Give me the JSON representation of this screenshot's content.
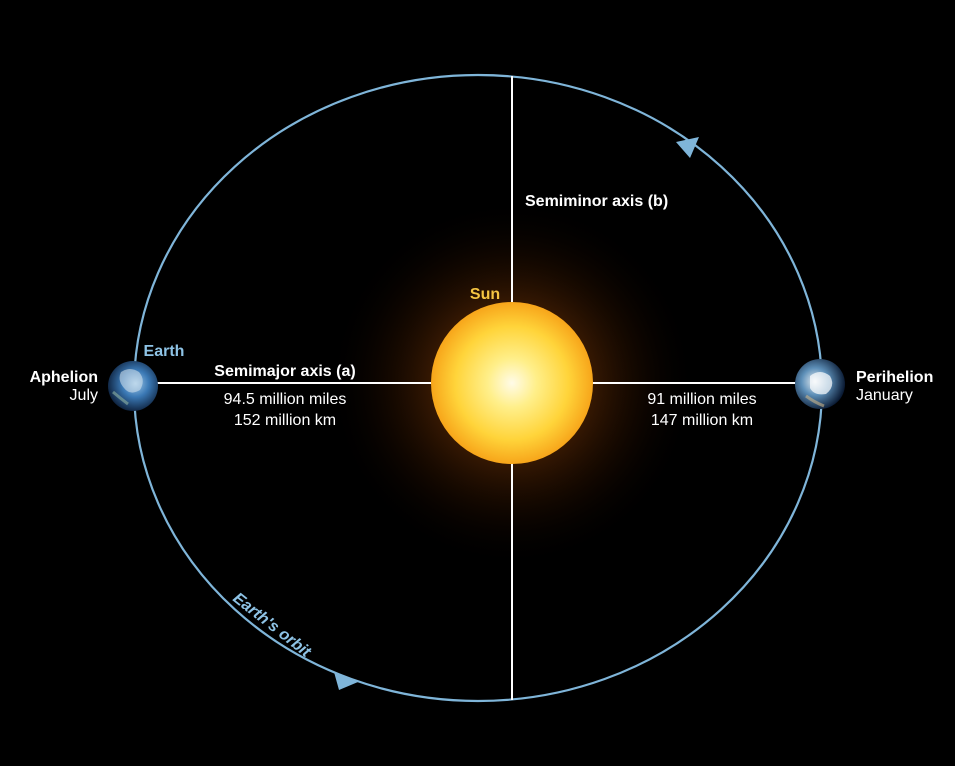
{
  "labels": {
    "semiminor_axis": "Semiminor axis (b)",
    "sun": "Sun",
    "earth": "Earth",
    "semimajor_axis": "Semimajor axis (a)",
    "aphelion": "Aphelion",
    "aphelion_month": "July",
    "aphelion_miles": "94.5 million miles",
    "aphelion_km": "152 million km",
    "perihelion": "Perihelion",
    "perihelion_month": "January",
    "perihelion_miles": "91 million miles",
    "perihelion_km": "147 million km",
    "orbit": "Earth's orbit"
  },
  "colors": {
    "background": "#000000",
    "orbit": "#7fb5d9",
    "axes": "#ffffff",
    "sun_core": "#fffbe8",
    "sun_mid": "#ffd43a",
    "sun_edge": "#f7a51a",
    "sun_label": "#f5c542",
    "earth_label": "#8ec3e6",
    "text": "#ffffff"
  },
  "icons": {
    "sun": "sun-icon",
    "earth_aphelion": "earth-globe-icon",
    "earth_perihelion": "earth-globe-icon",
    "orbit_arrow_top": "arrow-icon",
    "orbit_arrow_bottom": "arrow-icon"
  }
}
